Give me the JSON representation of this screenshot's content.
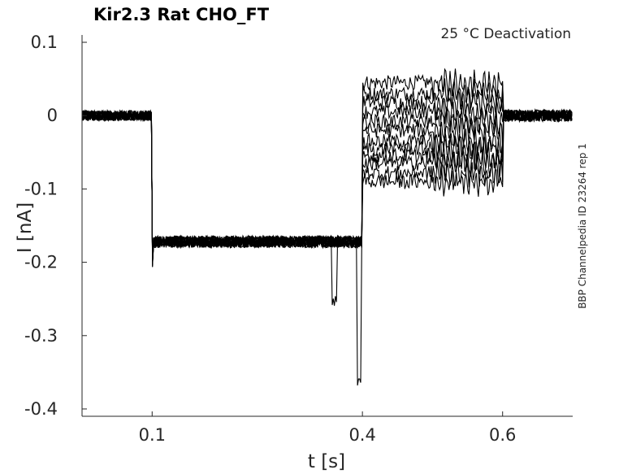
{
  "chart_data": {
    "type": "line",
    "title": "Kir2.3  Rat  CHO_FT",
    "annotation": "25 °C  Deactivation",
    "side_label": "BBP Channelpedia ID 23264 rep 1",
    "xlabel": "t [s]",
    "ylabel": "I [nA]",
    "xlim": [
      0.0,
      0.7
    ],
    "ylim": [
      -0.41,
      0.11
    ],
    "x_ticks": [
      0.1,
      0.4,
      0.6
    ],
    "x_tick_labels": [
      "0.1",
      "0.4",
      "0.6"
    ],
    "y_ticks": [
      0.1,
      0,
      -0.1,
      -0.2,
      -0.3,
      -0.4
    ],
    "y_tick_labels": [
      "0.1",
      "0",
      "-0.1",
      "-0.2",
      "-0.3",
      "-0.4"
    ],
    "grid": false,
    "line_color": "#000000",
    "protocol": {
      "baseline_end_s": 0.1,
      "hyperpolarizing_end_s": 0.4,
      "test_end_s": 0.6,
      "hold_current_nA": 0.0,
      "hyperpolarizing_current_nA": -0.172
    },
    "series_test_step_currents_nA": [
      0.045,
      0.03,
      0.018,
      0.005,
      -0.008,
      -0.02,
      -0.035,
      -0.045,
      -0.055,
      -0.065,
      -0.078,
      -0.09
    ]
  }
}
